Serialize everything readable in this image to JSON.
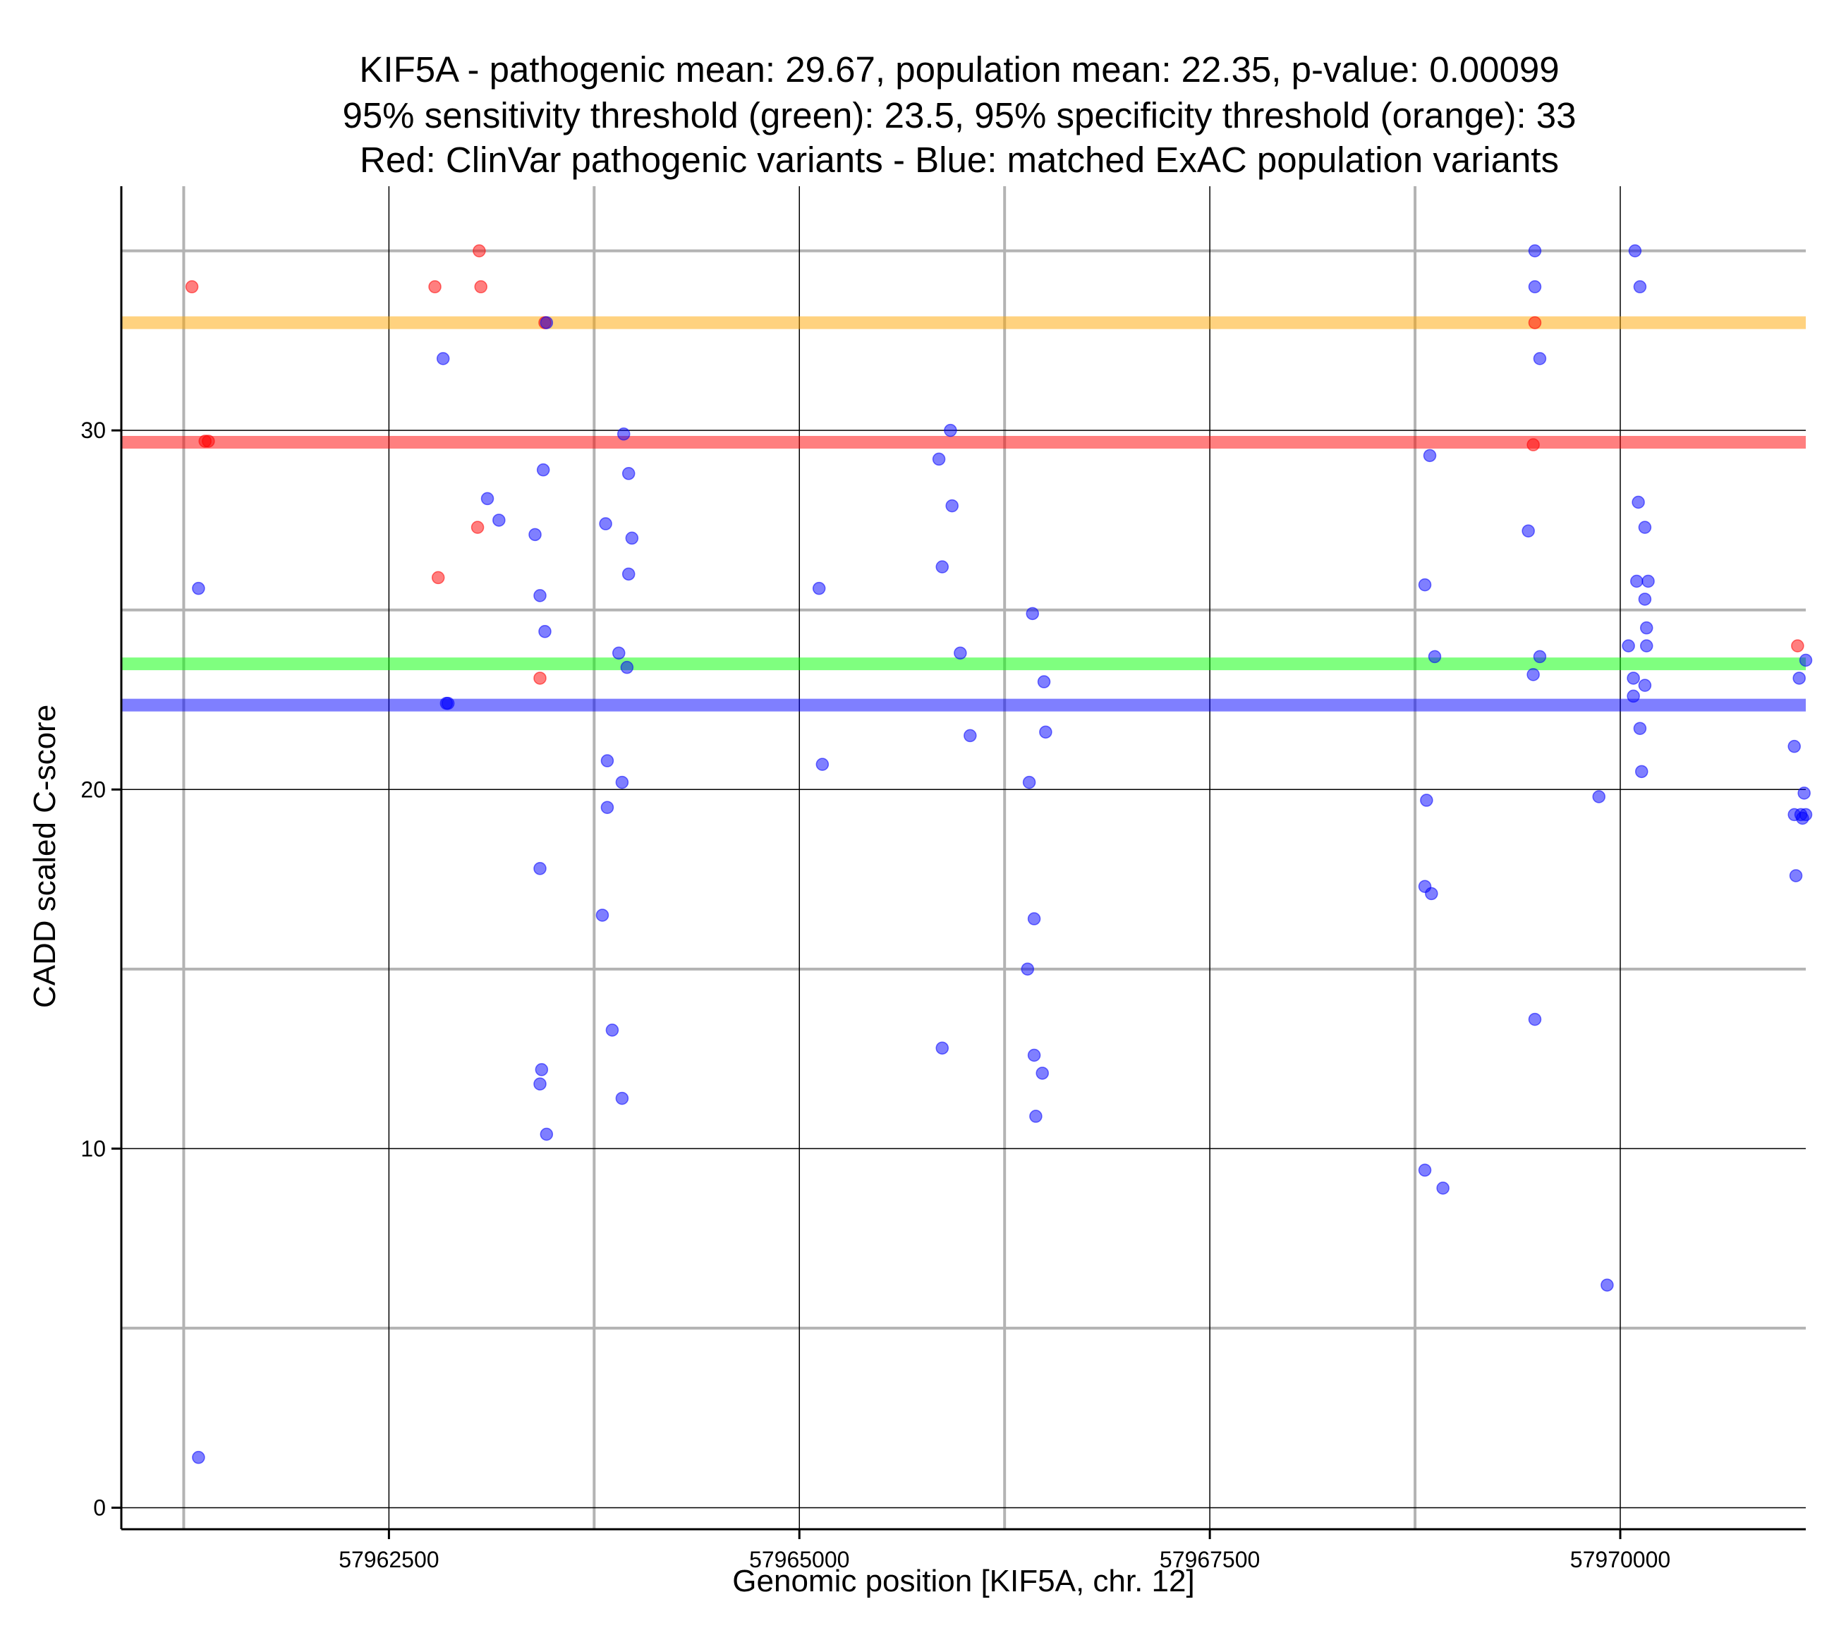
{
  "chart_data": {
    "type": "scatter",
    "title_lines": [
      "KIF5A - pathogenic mean: 29.67, population mean: 22.35, p-value: 0.00099",
      "95% sensitivity threshold (green): 23.5, 95% specificity threshold (orange): 33",
      "Red: ClinVar pathogenic variants - Blue: matched ExAC population variants"
    ],
    "xlabel": "Genomic position [KIF5A, chr. 12]",
    "ylabel": "CADD scaled C-score",
    "xlim": [
      57960870,
      57971130
    ],
    "ylim": [
      -0.6,
      36.8
    ],
    "x_ticks": [
      57962500,
      57965000,
      57967500,
      57970000
    ],
    "x_tick_labels": [
      "57962500",
      "57965000",
      "57967500",
      "57970000"
    ],
    "x_minor_grid": [
      57961250,
      57963750,
      57966250,
      57968750
    ],
    "y_ticks": [
      0,
      10,
      20,
      30
    ],
    "y_tick_labels": [
      "0",
      "10",
      "20",
      "30"
    ],
    "y_minor_grid": [
      5,
      15,
      25,
      35
    ],
    "colors": {
      "pathogenic": "#ff0000",
      "population": "#0000ff",
      "sensitivity": "#00ff00",
      "specificity": "#ffa500"
    },
    "hlines": [
      {
        "name": "specificity-threshold",
        "value": 33,
        "color": "#ffa500"
      },
      {
        "name": "pathogenic-mean",
        "value": 29.67,
        "color": "#ff0000"
      },
      {
        "name": "sensitivity-threshold",
        "value": 23.5,
        "color": "#00ff00"
      },
      {
        "name": "population-mean",
        "value": 22.35,
        "color": "#0000ff"
      }
    ],
    "series": [
      {
        "name": "ClinVar pathogenic variants",
        "color": "#ff0000",
        "points": [
          [
            57961300,
            34
          ],
          [
            57961380,
            29.7
          ],
          [
            57961400,
            29.7
          ],
          [
            57962780,
            34
          ],
          [
            57962800,
            25.9
          ],
          [
            57963050,
            35
          ],
          [
            57963060,
            34
          ],
          [
            57963040,
            27.3
          ],
          [
            57963450,
            33
          ],
          [
            57963420,
            23.1
          ],
          [
            57969480,
            33
          ],
          [
            57969470,
            29.6
          ],
          [
            57971080,
            24
          ]
        ]
      },
      {
        "name": "matched ExAC population variants",
        "color": "#0000ff",
        "points": [
          [
            57961340,
            25.6
          ],
          [
            57961340,
            1.4
          ],
          [
            57962830,
            32
          ],
          [
            57962850,
            22.4
          ],
          [
            57962860,
            22.4
          ],
          [
            57963100,
            28.1
          ],
          [
            57963170,
            27.5
          ],
          [
            57963390,
            27.1
          ],
          [
            57963420,
            17.8
          ],
          [
            57963420,
            25.4
          ],
          [
            57963430,
            12.2
          ],
          [
            57963420,
            11.8
          ],
          [
            57963440,
            28.9
          ],
          [
            57963450,
            24.4
          ],
          [
            57963460,
            10.4
          ],
          [
            57963460,
            33
          ],
          [
            57963800,
            16.5
          ],
          [
            57963820,
            27.4
          ],
          [
            57963830,
            20.8
          ],
          [
            57963830,
            19.5
          ],
          [
            57963860,
            13.3
          ],
          [
            57963900,
            23.8
          ],
          [
            57963920,
            20.2
          ],
          [
            57963920,
            11.4
          ],
          [
            57963930,
            29.9
          ],
          [
            57963950,
            23.4
          ],
          [
            57963960,
            28.8
          ],
          [
            57963960,
            26
          ],
          [
            57963980,
            27
          ],
          [
            57965120,
            25.6
          ],
          [
            57965140,
            20.7
          ],
          [
            57965850,
            29.2
          ],
          [
            57965870,
            26.2
          ],
          [
            57965870,
            12.8
          ],
          [
            57965920,
            30
          ],
          [
            57965930,
            27.9
          ],
          [
            57965980,
            23.8
          ],
          [
            57966040,
            21.5
          ],
          [
            57966390,
            15
          ],
          [
            57966400,
            20.2
          ],
          [
            57966420,
            24.9
          ],
          [
            57966430,
            16.4
          ],
          [
            57966430,
            12.6
          ],
          [
            57966440,
            10.9
          ],
          [
            57966480,
            12.1
          ],
          [
            57966490,
            23
          ],
          [
            57966500,
            21.6
          ],
          [
            57968810,
            9.4
          ],
          [
            57968820,
            19.7
          ],
          [
            57968810,
            25.7
          ],
          [
            57968810,
            17.3
          ],
          [
            57968840,
            29.3
          ],
          [
            57968850,
            17.1
          ],
          [
            57968870,
            23.7
          ],
          [
            57968920,
            8.9
          ],
          [
            57969440,
            27.2
          ],
          [
            57969470,
            23.2
          ],
          [
            57969480,
            13.6
          ],
          [
            57969480,
            35
          ],
          [
            57969480,
            34
          ],
          [
            57969510,
            32
          ],
          [
            57969510,
            23.7
          ],
          [
            57969870,
            19.8
          ],
          [
            57969920,
            6.2
          ],
          [
            57970050,
            24
          ],
          [
            57970080,
            23.1
          ],
          [
            57970080,
            22.6
          ],
          [
            57970090,
            35
          ],
          [
            57970100,
            25.8
          ],
          [
            57970110,
            28
          ],
          [
            57970120,
            34
          ],
          [
            57970120,
            21.7
          ],
          [
            57970130,
            20.5
          ],
          [
            57970150,
            25.3
          ],
          [
            57970150,
            27.3
          ],
          [
            57970150,
            22.9
          ],
          [
            57970160,
            24.5
          ],
          [
            57970160,
            24
          ],
          [
            57970170,
            25.8
          ],
          [
            57971060,
            21.2
          ],
          [
            57971060,
            19.3
          ],
          [
            57971070,
            17.6
          ],
          [
            57971090,
            23.1
          ],
          [
            57971100,
            19.3
          ],
          [
            57971110,
            19.2
          ],
          [
            57971120,
            19.9
          ],
          [
            57971130,
            19.3
          ],
          [
            57971130,
            23.6
          ]
        ]
      }
    ]
  }
}
